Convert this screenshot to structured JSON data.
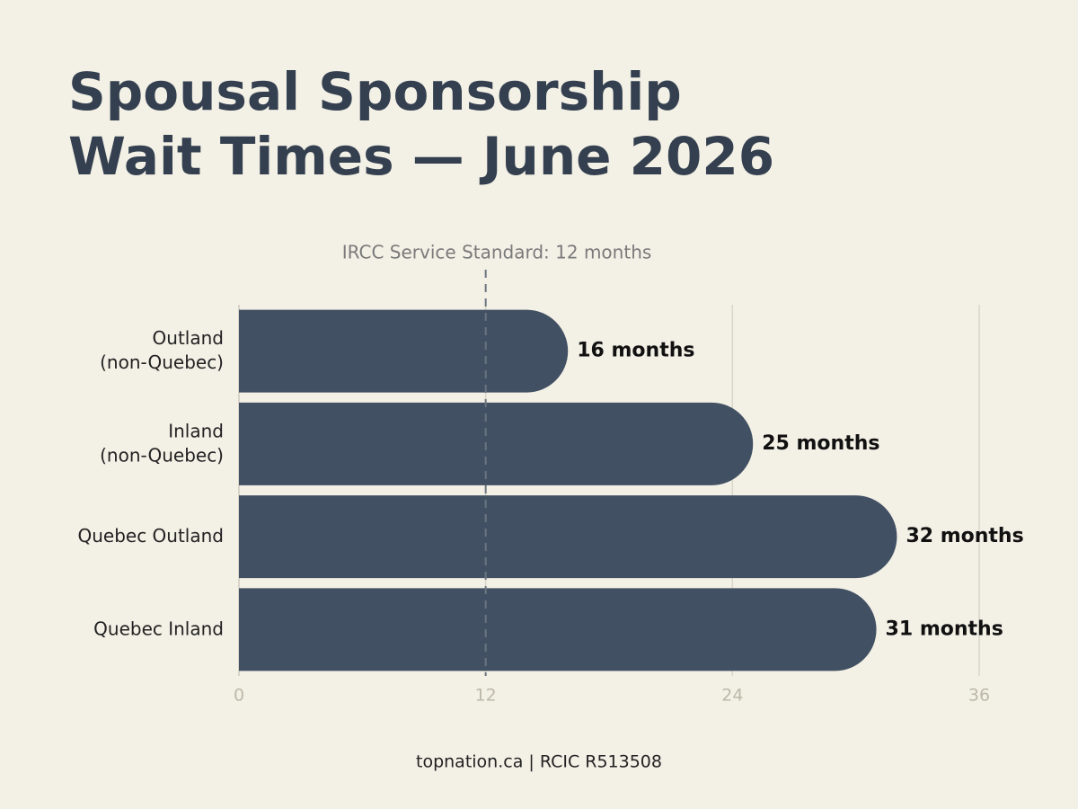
{
  "chart_data": {
    "type": "bar",
    "orientation": "horizontal",
    "title": "Spousal Sponsorship\nWait Times — June 2026",
    "categories": [
      "Outland\n(non-Quebec)",
      "Inland\n(non-Quebec)",
      "Quebec Outland",
      "Quebec Inland"
    ],
    "values": [
      16,
      25,
      32,
      31
    ],
    "value_labels": [
      "16 months",
      "25 months",
      "32 months",
      "31 months"
    ],
    "color": "#415062",
    "xlim": [
      0,
      36
    ],
    "xticks": [
      0,
      12,
      24,
      36
    ],
    "grid": true,
    "reference_line": {
      "value": 12,
      "label": "IRCC Service Standard: 12 months"
    },
    "footer": "topnation.ca | RCIC R513508"
  }
}
